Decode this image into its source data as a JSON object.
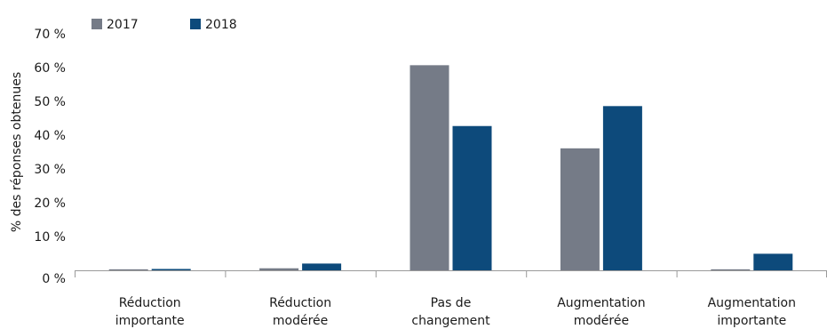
{
  "chart_data": {
    "type": "bar",
    "title": "",
    "xlabel": "",
    "ylabel": "% des réponses obtenues",
    "ylim": [
      0,
      70
    ],
    "y_ticks": [
      0,
      10,
      20,
      30,
      40,
      50,
      60,
      70
    ],
    "y_tick_labels": [
      "0 %",
      "10 %",
      "20 %",
      "30 %",
      "40 %",
      "50 %",
      "60 %",
      "70 %"
    ],
    "legend_position": "top-left",
    "grid": false,
    "categories": [
      [
        "Réduction",
        "importante"
      ],
      [
        "Réduction",
        "modérée"
      ],
      [
        "Pas de",
        "changement"
      ],
      [
        "Augmentation",
        "modérée"
      ],
      [
        "Augmentation",
        "importante"
      ]
    ],
    "series": [
      {
        "name": "2017",
        "color": "#757b87",
        "values": [
          0.3,
          0.6,
          60.7,
          36.1,
          0.3
        ]
      },
      {
        "name": "2018",
        "color": "#0d4a7b",
        "values": [
          0.4,
          2.0,
          42.7,
          48.6,
          4.9
        ]
      }
    ]
  }
}
